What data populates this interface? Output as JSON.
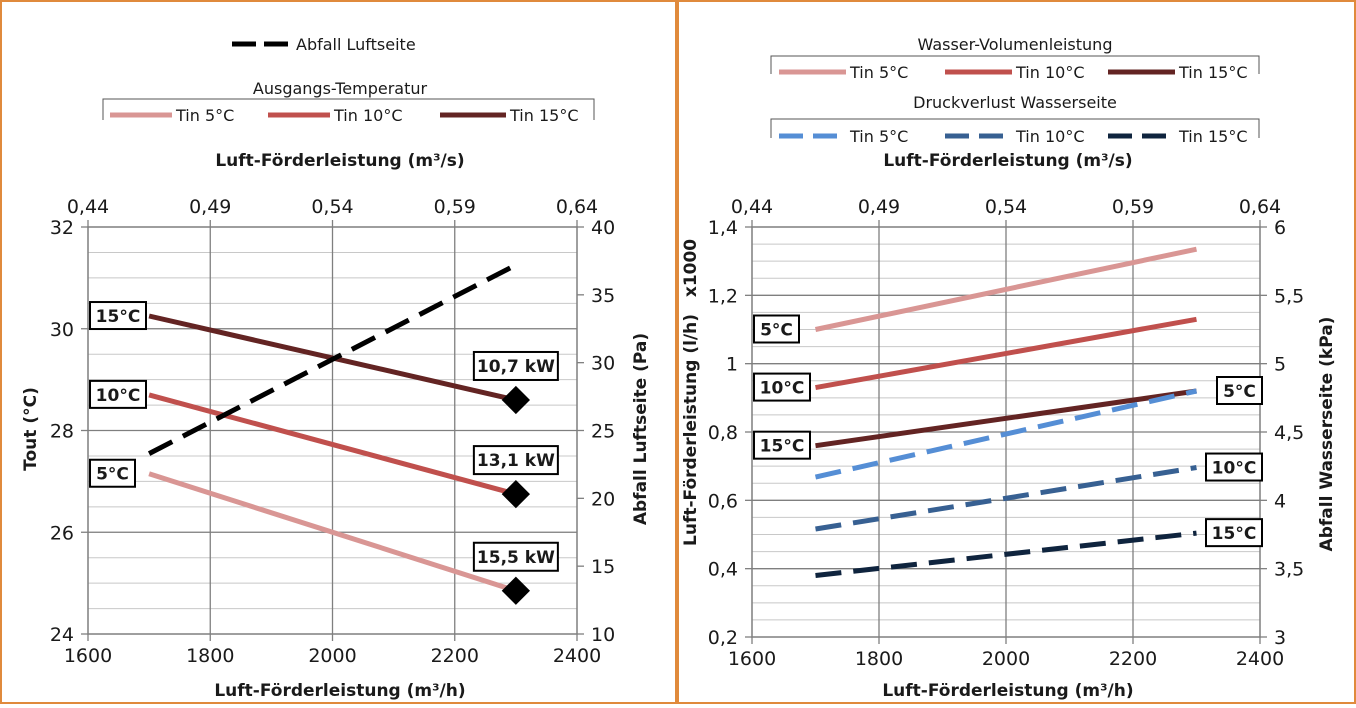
{
  "chart_data": [
    {
      "type": "line",
      "xlabel": "Luft-Förderleistung (m³/h)",
      "x2label": "Luft-Förderleistung (m³/s)",
      "ylabel": "Tout (°C)",
      "y2label": "Abfall Luftseite (Pa)",
      "xlim": [
        1600,
        2400
      ],
      "xticks": [
        "1600",
        "1800",
        "2000",
        "2200",
        "2400"
      ],
      "x2lim": [
        0.44,
        0.64
      ],
      "x2ticks": [
        "0,44",
        "0,49",
        "0,54",
        "0,59",
        "0,64"
      ],
      "ylim": [
        24,
        32
      ],
      "yticks": [
        "24",
        "26",
        "28",
        "30",
        "32"
      ],
      "y2lim": [
        10,
        40
      ],
      "y2ticks": [
        "10",
        "15",
        "20",
        "25",
        "30",
        "35",
        "40"
      ],
      "grid": true,
      "legend": {
        "pressure_entry": "Abfall Luftseite",
        "group_title": "Ausgangs-Temperatur",
        "entries": [
          "Tin 5°C",
          "Tin 10°C",
          "Tin 15°C"
        ]
      },
      "series": [
        {
          "name": "Tin 5°C",
          "axis": "y",
          "color": "#d99694",
          "x": [
            1700,
            2300
          ],
          "y": [
            27.15,
            24.85
          ]
        },
        {
          "name": "Tin 10°C",
          "axis": "y",
          "color": "#c0504d",
          "x": [
            1700,
            2300
          ],
          "y": [
            28.7,
            26.75
          ]
        },
        {
          "name": "Tin 15°C",
          "axis": "y",
          "color": "#632423",
          "x": [
            1700,
            2300
          ],
          "y": [
            30.25,
            28.6
          ]
        },
        {
          "name": "Abfall Luftseite",
          "axis": "y2",
          "color": "#000000",
          "dashed": true,
          "x": [
            1700,
            2300
          ],
          "y": [
            23.3,
            37.2
          ]
        }
      ],
      "annotations": [
        {
          "text": "15°C",
          "x": 1700,
          "y": 30.25
        },
        {
          "text": "10°C",
          "x": 1700,
          "y": 28.7
        },
        {
          "text": "5°C",
          "x": 1700,
          "y": 27.15
        },
        {
          "text": "10,7 kW",
          "x": 2300,
          "y": 28.6
        },
        {
          "text": "13,1 kW",
          "x": 2300,
          "y": 26.75
        },
        {
          "text": "15,5 kW",
          "x": 2300,
          "y": 24.85
        }
      ]
    },
    {
      "type": "line",
      "xlabel": "Luft-Förderleistung (m³/h)",
      "x2label": "Luft-Förderleistung (m³/s)",
      "ylabel": "Luft-Förderleistung  (l/h)",
      "ymultiplier": "x1000",
      "y2label": "Abfall Wasserseite (kPa)",
      "xlim": [
        1600,
        2400
      ],
      "xticks": [
        "1600",
        "1800",
        "2000",
        "2200",
        "2400"
      ],
      "x2lim": [
        0.44,
        0.64
      ],
      "x2ticks": [
        "0,44",
        "0,49",
        "0,54",
        "0,59",
        "0,64"
      ],
      "ylim": [
        0.2,
        1.4
      ],
      "yticks": [
        "0,2",
        "0,4",
        "0,6",
        "0,8",
        "1",
        "1,2",
        "1,4"
      ],
      "y2lim": [
        3,
        6
      ],
      "y2ticks": [
        "3",
        "3,5",
        "4",
        "4,5",
        "5",
        "5,5",
        "6"
      ],
      "grid": true,
      "legend": {
        "group1_title": "Wasser-Volumenleistung",
        "group1_entries": [
          "Tin 5°C",
          "Tin 10°C",
          "Tin 15°C"
        ],
        "group2_title": "Druckverlust Wasserseite",
        "group2_entries": [
          "Tin 5°C",
          "Tin 10°C",
          "Tin 15°C"
        ]
      },
      "series": [
        {
          "name": "Tin 5°C",
          "group": "Wasser-Volumenleistung",
          "axis": "y",
          "color": "#d99694",
          "x": [
            1700,
            2300
          ],
          "y": [
            1.1,
            1.335
          ]
        },
        {
          "name": "Tin 10°C",
          "group": "Wasser-Volumenleistung",
          "axis": "y",
          "color": "#c0504d",
          "x": [
            1700,
            2300
          ],
          "y": [
            0.93,
            1.13
          ]
        },
        {
          "name": "Tin 15°C",
          "group": "Wasser-Volumenleistung",
          "axis": "y",
          "color": "#632423",
          "x": [
            1700,
            2300
          ],
          "y": [
            0.76,
            0.92
          ]
        },
        {
          "name": "Tin 5°C",
          "group": "Druckverlust Wasserseite",
          "axis": "y2",
          "color": "#558ed5",
          "dashed": true,
          "x": [
            1700,
            2300
          ],
          "y": [
            4.17,
            4.8
          ]
        },
        {
          "name": "Tin 10°C",
          "group": "Druckverlust Wasserseite",
          "axis": "y2",
          "color": "#376092",
          "dashed": true,
          "x": [
            1700,
            2300
          ],
          "y": [
            3.79,
            4.24
          ]
        },
        {
          "name": "Tin 15°C",
          "group": "Druckverlust Wasserseite",
          "axis": "y2",
          "color": "#0f243e",
          "dashed": true,
          "x": [
            1700,
            2300
          ],
          "y": [
            3.45,
            3.76
          ]
        }
      ],
      "annotations": [
        {
          "text": "5°C",
          "side": "left",
          "x": 1700,
          "y": 1.1,
          "axis": "y"
        },
        {
          "text": "10°C",
          "side": "left",
          "x": 1700,
          "y": 0.93,
          "axis": "y"
        },
        {
          "text": "15°C",
          "side": "left",
          "x": 1700,
          "y": 0.76,
          "axis": "y"
        },
        {
          "text": "5°C",
          "side": "right",
          "x": 2300,
          "y": 4.8,
          "axis": "y2"
        },
        {
          "text": "10°C",
          "side": "right",
          "x": 2300,
          "y": 4.24,
          "axis": "y2"
        },
        {
          "text": "15°C",
          "side": "right",
          "x": 2300,
          "y": 3.76,
          "axis": "y2"
        }
      ]
    }
  ]
}
